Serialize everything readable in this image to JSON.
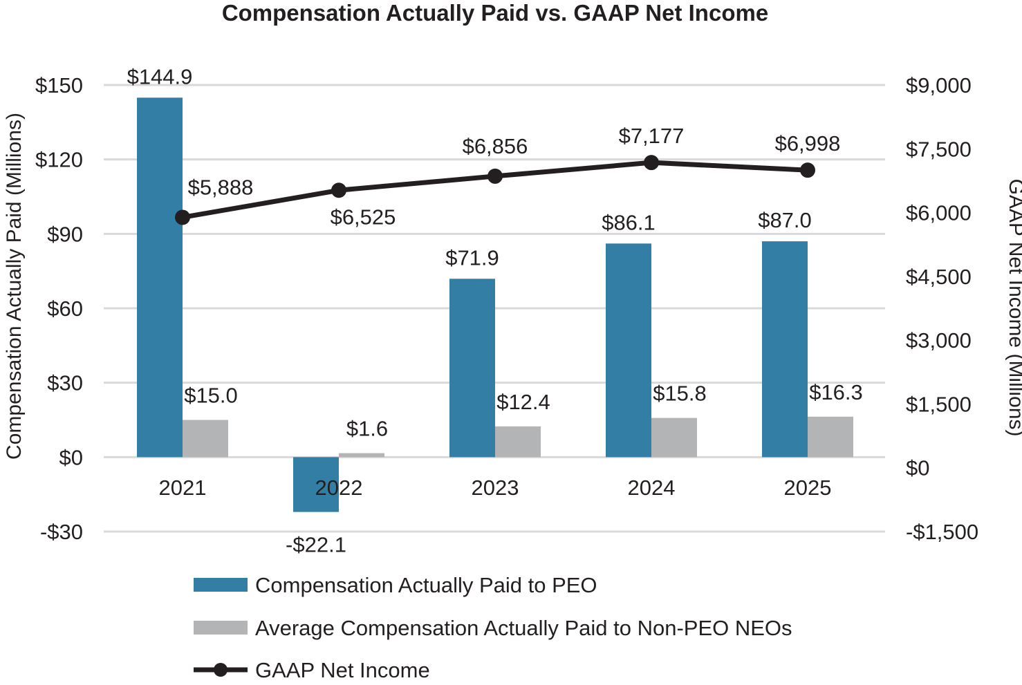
{
  "chart_data": {
    "type": "bar",
    "title": "Compensation Actually Paid vs. GAAP Net Income",
    "categories": [
      "2021",
      "2022",
      "2023",
      "2024",
      "2025"
    ],
    "left_axis": {
      "label": "Compensation Actually Paid (Millions)",
      "range": [
        -30,
        150
      ],
      "ticks": [
        150,
        120,
        90,
        60,
        30,
        0,
        -30
      ],
      "tick_labels": [
        "$150",
        "$120",
        "$90",
        "$60",
        "$30",
        "$0",
        "-$30"
      ]
    },
    "right_axis": {
      "label": "GAAP Net Income (Millions)",
      "range": [
        -1500,
        9000
      ],
      "ticks": [
        9000,
        7500,
        6000,
        4500,
        3000,
        1500,
        0,
        -1500
      ],
      "tick_labels": [
        "$9,000",
        "$7,500",
        "$6,000",
        "$4,500",
        "$3,000",
        "$1,500",
        "$0",
        "-$1,500"
      ]
    },
    "grid": true,
    "legend_position": "bottom",
    "series": [
      {
        "name": "Compensation Actually Paid to PEO",
        "type": "bar",
        "axis": "left",
        "color": "#337ea4",
        "values": [
          144.9,
          -22.1,
          71.9,
          86.1,
          87.0
        ],
        "labels": [
          "$144.9",
          "-$22.1",
          "$71.9",
          "$86.1",
          "$87.0"
        ]
      },
      {
        "name": "Average Compensation Actually Paid to Non-PEO NEOs",
        "type": "bar",
        "axis": "left",
        "color": "#b3b4b5",
        "values": [
          15.0,
          1.6,
          12.4,
          15.8,
          16.3
        ],
        "labels": [
          "$15.0",
          "$1.6",
          "$12.4",
          "$15.8",
          "$16.3"
        ]
      },
      {
        "name": "GAAP Net Income",
        "type": "line",
        "axis": "right",
        "color": "#231f20",
        "values": [
          5888,
          6525,
          6856,
          7177,
          6998
        ],
        "labels": [
          "$5,888",
          "$6,525",
          "$6,856",
          "$7,177",
          "$6,998"
        ]
      }
    ]
  }
}
